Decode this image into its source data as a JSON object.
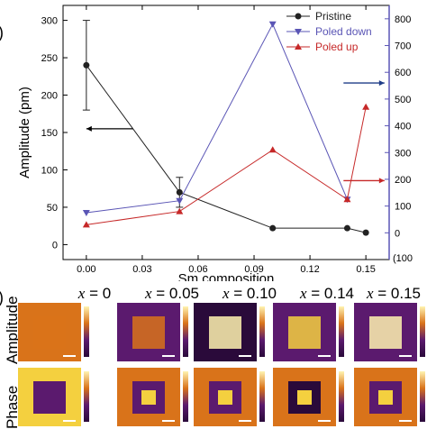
{
  "chart_data": {
    "type": "line",
    "xlabel": "Sm composition",
    "ylabel": "Amplitude (pm)",
    "xlim": [
      -0.0125,
      0.1625
    ],
    "ylim_left": [
      -20,
      320
    ],
    "ylim_right": [
      -100,
      850
    ],
    "x_ticks": [
      "0.00",
      "0.03",
      "0.06",
      "0.09",
      "0.12",
      "0.15"
    ],
    "y_left_ticks": [
      "0",
      "50",
      "100",
      "150",
      "200",
      "250",
      "300"
    ],
    "y_right_ticks": [
      "0",
      "100",
      "200",
      "300",
      "400",
      "500",
      "600",
      "700",
      "800"
    ],
    "y_right_partial_label": "(100",
    "legend_position": "top-right",
    "series": [
      {
        "name": "Pristine",
        "axis": "left",
        "color": "#222222",
        "marker": "circle",
        "x": [
          0.0,
          0.05,
          0.1,
          0.14,
          0.15
        ],
        "y": [
          240,
          70,
          22,
          22,
          16
        ],
        "err": [
          60,
          20,
          0,
          0,
          0
        ]
      },
      {
        "name": "Poled down",
        "axis": "right",
        "color": "#5a55b5",
        "marker": "triangle-down",
        "x": [
          0.0,
          0.05,
          0.1,
          0.14
        ],
        "y": [
          75,
          120,
          780,
          125
        ],
        "err": [
          0,
          0,
          0,
          0
        ]
      },
      {
        "name": "Poled up",
        "axis": "right",
        "color": "#c62828",
        "marker": "triangle-up",
        "x": [
          0.0,
          0.05,
          0.1,
          0.14,
          0.15
        ],
        "y": [
          30,
          80,
          310,
          125,
          470
        ],
        "err": [
          0,
          0,
          0,
          0,
          0
        ]
      }
    ],
    "arrows": [
      {
        "direction": "left",
        "color": "#000000",
        "x0": 0.025,
        "x1": 0.0,
        "y": 155
      },
      {
        "direction": "right",
        "color": "#1f3c88",
        "x0": 0.138,
        "x1": 0.16,
        "y": 560
      },
      {
        "direction": "right",
        "color": "#c62828",
        "x0": 0.138,
        "x1": 0.16,
        "y": 195
      }
    ]
  },
  "panel_labels": {
    "a": ")",
    "b": ")"
  },
  "maps": {
    "row_labels": [
      "Amplitude",
      "Phase"
    ],
    "columns": [
      {
        "var": "x",
        "eq": " = 0"
      },
      {
        "var": "x",
        "eq": " = 0.05"
      },
      {
        "var": "x",
        "eq": " = 0.10"
      },
      {
        "var": "x",
        "eq": " = 0.14"
      },
      {
        "var": "x",
        "eq": " = 0.15"
      }
    ],
    "colors": {
      "dark": "#2a0a3a",
      "purple": "#5b1a6e",
      "orange": "#d9731a",
      "yellow": "#f4d03f",
      "light": "#fff3b0"
    }
  }
}
